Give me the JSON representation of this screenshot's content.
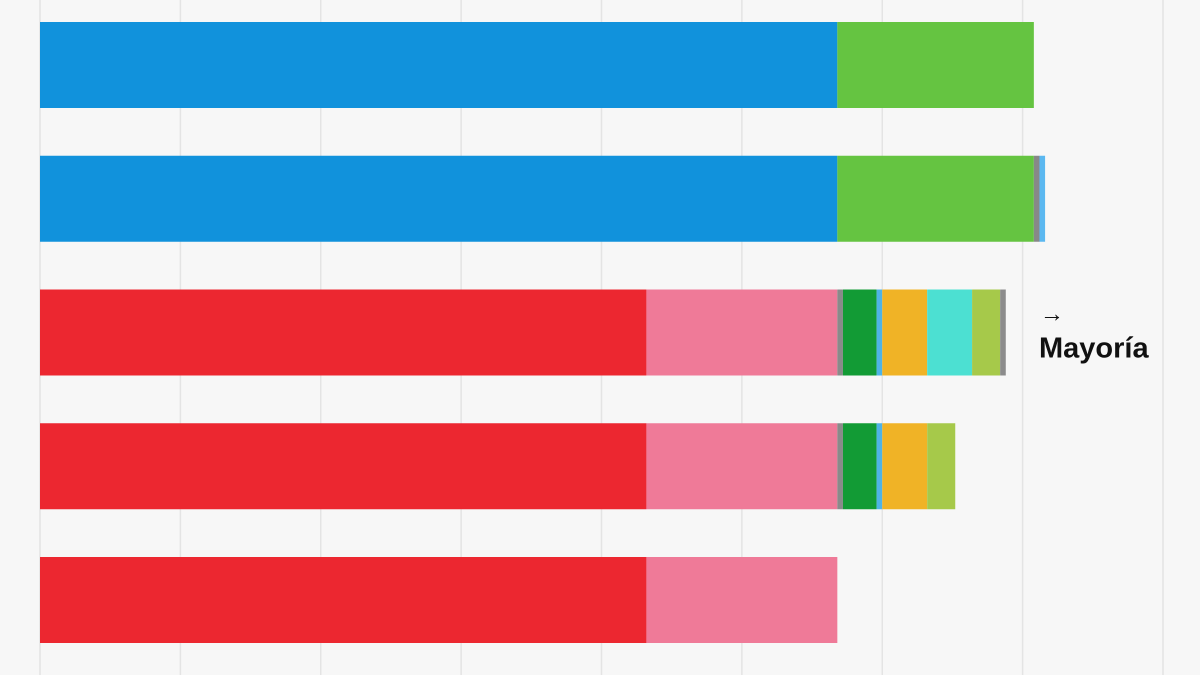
{
  "chart_data": {
    "type": "stacked-bar-horizontal",
    "categories": [
      null,
      null,
      null,
      null,
      null
    ],
    "xlim": [
      0,
      200
    ],
    "xticks": [
      0,
      25,
      50,
      75,
      100,
      125,
      150,
      175,
      200
    ],
    "grid": true,
    "annotation_arrow": "→",
    "annotation": "Mayoría",
    "series": [
      {
        "color": "#1192dc",
        "values": [
          142,
          142,
          null,
          null,
          null
        ]
      },
      {
        "color": "#65c441",
        "values": [
          35,
          35,
          null,
          null,
          null
        ]
      },
      {
        "color": "#888888",
        "values": [
          null,
          1,
          null,
          null,
          null
        ]
      },
      {
        "color": "#5bb8f0",
        "values": [
          null,
          1,
          null,
          null,
          null
        ]
      },
      {
        "color": "#ec2730",
        "values": [
          null,
          null,
          108,
          108,
          108
        ]
      },
      {
        "color": "#ef7a98",
        "values": [
          null,
          null,
          34,
          34,
          34
        ]
      },
      {
        "color": "#8a8a8a",
        "values": [
          null,
          null,
          1,
          1,
          null
        ]
      },
      {
        "color": "#129b35",
        "values": [
          null,
          null,
          6,
          6,
          null
        ]
      },
      {
        "color": "#4fb3e6",
        "values": [
          null,
          null,
          1,
          1,
          null
        ]
      },
      {
        "color": "#f0b326",
        "values": [
          null,
          null,
          8,
          8,
          null
        ]
      },
      {
        "color": "#4ce0d2",
        "values": [
          null,
          null,
          8,
          null,
          null
        ]
      },
      {
        "color": "#a6c94a",
        "values": [
          null,
          null,
          5,
          5,
          null
        ]
      },
      {
        "color": "#8c8c8c",
        "values": [
          null,
          null,
          1,
          null,
          null
        ]
      }
    ]
  }
}
